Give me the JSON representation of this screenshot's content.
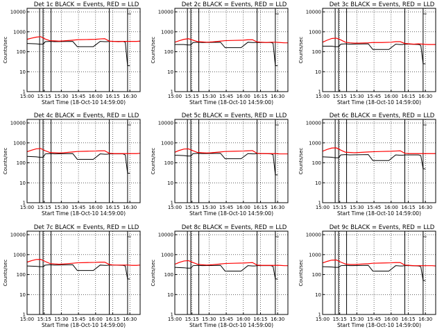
{
  "colors": {
    "events": "#000000",
    "lld": "#ff0000",
    "axes": "#000000",
    "grid": "#000000",
    "background": "#ffffff"
  },
  "shared": {
    "ylabel": "Counts/sec",
    "xlabel": "Start Time (18-Oct-10 14:59:00)",
    "x_tick_labels": [
      "15:00",
      "15:15",
      "15:30",
      "15:45",
      "16:00",
      "16:15",
      "16:30"
    ],
    "y_tick_labels": [
      "1",
      "10",
      "100",
      "1000",
      "10000"
    ],
    "xlim_minutes": [
      0,
      99
    ],
    "ylim": [
      1,
      15000
    ],
    "y_scale": "log",
    "x_ticks_minutes": [
      0,
      15,
      30,
      45,
      60,
      75,
      90
    ],
    "y_ticks": [
      1,
      10,
      100,
      1000,
      10000
    ],
    "grid": "dotted",
    "vertical_markers_minutes": [
      11,
      14,
      21,
      72,
      88
    ]
  },
  "chart_data": [
    {
      "type": "line",
      "title": "Det 1c BLACK = Events, RED = LLD",
      "series": [
        {
          "name": "Events",
          "x": [
            0,
            8,
            11,
            14,
            16,
            20,
            24,
            40,
            44,
            52,
            58,
            64,
            68,
            70,
            72,
            76,
            84,
            86,
            88,
            90
          ],
          "y": [
            260,
            250,
            240,
            240,
            320,
            330,
            320,
            330,
            180,
            180,
            180,
            330,
            320,
            320,
            330,
            330,
            330,
            300,
            20,
            20
          ]
        },
        {
          "name": "LLD",
          "x": [
            0,
            4,
            8,
            12,
            16,
            20,
            24,
            28,
            32,
            40,
            44,
            52,
            60,
            64,
            68,
            72,
            76,
            80,
            84,
            88,
            92,
            96,
            99
          ],
          "y": [
            420,
            480,
            540,
            570,
            430,
            360,
            350,
            340,
            350,
            380,
            400,
            410,
            420,
            440,
            450,
            340,
            330,
            320,
            330,
            330,
            330,
            330,
            340
          ]
        }
      ]
    },
    {
      "type": "line",
      "title": "Det 2c BLACK = Events, RED = LLD",
      "series": [
        {
          "name": "Events",
          "x": [
            0,
            8,
            11,
            14,
            16,
            20,
            24,
            40,
            44,
            52,
            58,
            64,
            68,
            70,
            72,
            76,
            84,
            86,
            88,
            90
          ],
          "y": [
            230,
            230,
            220,
            220,
            290,
            300,
            290,
            300,
            160,
            160,
            160,
            300,
            290,
            290,
            290,
            290,
            290,
            270,
            20,
            20
          ]
        },
        {
          "name": "LLD",
          "x": [
            0,
            4,
            8,
            12,
            16,
            20,
            24,
            28,
            32,
            40,
            44,
            52,
            60,
            64,
            68,
            72,
            76,
            80,
            84,
            88,
            92,
            96,
            99
          ],
          "y": [
            300,
            360,
            420,
            450,
            380,
            320,
            310,
            300,
            310,
            340,
            360,
            370,
            380,
            400,
            400,
            310,
            300,
            290,
            300,
            300,
            290,
            280,
            280
          ]
        }
      ]
    },
    {
      "type": "line",
      "title": "Det 3c BLACK = Events, RED = LLD",
      "series": [
        {
          "name": "Events",
          "x": [
            0,
            8,
            11,
            14,
            16,
            20,
            24,
            40,
            44,
            52,
            58,
            64,
            68,
            70,
            72,
            76,
            84,
            86,
            88,
            90
          ],
          "y": [
            190,
            190,
            180,
            180,
            240,
            250,
            240,
            250,
            130,
            130,
            130,
            240,
            230,
            230,
            240,
            240,
            230,
            210,
            25,
            25
          ]
        },
        {
          "name": "LLD",
          "x": [
            0,
            4,
            8,
            12,
            16,
            20,
            24,
            28,
            32,
            40,
            44,
            52,
            60,
            64,
            68,
            72,
            76,
            80,
            84,
            88,
            92,
            96,
            99
          ],
          "y": [
            300,
            380,
            460,
            480,
            390,
            300,
            280,
            270,
            270,
            280,
            290,
            290,
            300,
            320,
            320,
            260,
            250,
            240,
            250,
            240,
            230,
            230,
            230
          ]
        }
      ]
    },
    {
      "type": "line",
      "title": "Det 4c BLACK = Events, RED = LLD",
      "series": [
        {
          "name": "Events",
          "x": [
            0,
            8,
            11,
            14,
            16,
            20,
            24,
            40,
            44,
            52,
            58,
            64,
            68,
            70,
            72,
            76,
            84,
            86,
            88,
            90
          ],
          "y": [
            210,
            200,
            190,
            190,
            280,
            290,
            280,
            290,
            150,
            150,
            150,
            280,
            270,
            270,
            280,
            280,
            280,
            250,
            30,
            30
          ]
        },
        {
          "name": "LLD",
          "x": [
            0,
            4,
            8,
            12,
            16,
            20,
            24,
            28,
            32,
            40,
            44,
            52,
            60,
            64,
            68,
            72,
            76,
            80,
            84,
            88,
            92,
            96,
            99
          ],
          "y": [
            360,
            430,
            500,
            520,
            400,
            330,
            320,
            310,
            320,
            350,
            370,
            380,
            390,
            400,
            400,
            300,
            290,
            290,
            290,
            290,
            290,
            290,
            300
          ]
        }
      ]
    },
    {
      "type": "line",
      "title": "Det 5c BLACK = Events, RED = LLD",
      "series": [
        {
          "name": "Events",
          "x": [
            0,
            8,
            11,
            14,
            16,
            20,
            24,
            40,
            44,
            52,
            58,
            64,
            68,
            70,
            72,
            76,
            84,
            86,
            88,
            90
          ],
          "y": [
            240,
            230,
            220,
            220,
            290,
            300,
            290,
            300,
            160,
            160,
            160,
            290,
            280,
            280,
            290,
            290,
            280,
            260,
            25,
            25
          ]
        },
        {
          "name": "LLD",
          "x": [
            0,
            4,
            8,
            12,
            16,
            20,
            24,
            28,
            32,
            40,
            44,
            52,
            60,
            64,
            68,
            72,
            76,
            80,
            84,
            88,
            92,
            96,
            99
          ],
          "y": [
            340,
            420,
            490,
            500,
            400,
            330,
            320,
            310,
            320,
            350,
            370,
            380,
            390,
            400,
            410,
            300,
            290,
            290,
            290,
            290,
            280,
            280,
            280
          ]
        }
      ]
    },
    {
      "type": "line",
      "title": "Det 6c BLACK = Events, RED = LLD",
      "series": [
        {
          "name": "Events",
          "x": [
            0,
            8,
            11,
            14,
            16,
            20,
            24,
            40,
            44,
            52,
            58,
            64,
            68,
            70,
            72,
            76,
            84,
            86,
            88,
            90
          ],
          "y": [
            200,
            190,
            180,
            180,
            250,
            260,
            250,
            260,
            130,
            130,
            130,
            250,
            240,
            240,
            250,
            250,
            250,
            230,
            50,
            50
          ]
        },
        {
          "name": "LLD",
          "x": [
            0,
            4,
            8,
            12,
            16,
            20,
            24,
            28,
            32,
            40,
            44,
            52,
            60,
            64,
            68,
            72,
            76,
            80,
            84,
            88,
            92,
            96,
            99
          ],
          "y": [
            380,
            470,
            550,
            560,
            430,
            340,
            330,
            320,
            330,
            350,
            360,
            370,
            380,
            390,
            400,
            300,
            290,
            290,
            290,
            290,
            290,
            290,
            290
          ]
        }
      ]
    },
    {
      "type": "line",
      "title": "Det 7c BLACK = Events, RED = LLD",
      "series": [
        {
          "name": "Events",
          "x": [
            0,
            8,
            11,
            14,
            16,
            20,
            24,
            40,
            44,
            52,
            58,
            64,
            68,
            70,
            72,
            76,
            84,
            86,
            88,
            90
          ],
          "y": [
            270,
            260,
            250,
            250,
            300,
            310,
            300,
            310,
            160,
            160,
            160,
            300,
            290,
            290,
            300,
            300,
            290,
            270,
            60,
            60
          ]
        },
        {
          "name": "LLD",
          "x": [
            0,
            4,
            8,
            12,
            16,
            20,
            24,
            28,
            32,
            40,
            44,
            52,
            60,
            64,
            68,
            72,
            76,
            80,
            84,
            88,
            92,
            96,
            99
          ],
          "y": [
            420,
            500,
            570,
            580,
            450,
            360,
            340,
            330,
            340,
            370,
            390,
            400,
            410,
            420,
            420,
            320,
            300,
            300,
            300,
            300,
            290,
            290,
            300
          ]
        }
      ]
    },
    {
      "type": "line",
      "title": "Det 8c BLACK = Events, RED = LLD",
      "series": [
        {
          "name": "Events",
          "x": [
            0,
            8,
            11,
            14,
            16,
            20,
            24,
            40,
            44,
            52,
            58,
            64,
            68,
            70,
            72,
            76,
            84,
            86,
            88,
            90
          ],
          "y": [
            230,
            220,
            210,
            210,
            280,
            290,
            280,
            290,
            150,
            150,
            150,
            280,
            270,
            270,
            280,
            280,
            280,
            260,
            60,
            60
          ]
        },
        {
          "name": "LLD",
          "x": [
            0,
            4,
            8,
            12,
            16,
            20,
            24,
            28,
            32,
            40,
            44,
            52,
            60,
            64,
            68,
            72,
            76,
            80,
            84,
            88,
            92,
            96,
            99
          ],
          "y": [
            330,
            410,
            480,
            500,
            400,
            330,
            310,
            300,
            310,
            340,
            360,
            370,
            380,
            390,
            400,
            300,
            290,
            290,
            290,
            290,
            290,
            280,
            280
          ]
        }
      ]
    },
    {
      "type": "line",
      "title": "Det 9c BLACK = Events, RED = LLD",
      "series": [
        {
          "name": "Events",
          "x": [
            0,
            8,
            11,
            14,
            16,
            20,
            24,
            40,
            44,
            52,
            58,
            64,
            68,
            70,
            72,
            76,
            84,
            86,
            88,
            90
          ],
          "y": [
            250,
            240,
            230,
            230,
            280,
            290,
            280,
            290,
            150,
            150,
            150,
            280,
            270,
            270,
            280,
            280,
            270,
            250,
            50,
            50
          ]
        },
        {
          "name": "LLD",
          "x": [
            0,
            4,
            8,
            12,
            16,
            20,
            24,
            28,
            32,
            40,
            44,
            52,
            60,
            64,
            68,
            72,
            76,
            80,
            84,
            88,
            92,
            96,
            99
          ],
          "y": [
            380,
            460,
            530,
            540,
            420,
            340,
            320,
            320,
            330,
            350,
            370,
            380,
            390,
            400,
            400,
            300,
            290,
            280,
            280,
            280,
            280,
            280,
            270
          ]
        }
      ]
    }
  ]
}
